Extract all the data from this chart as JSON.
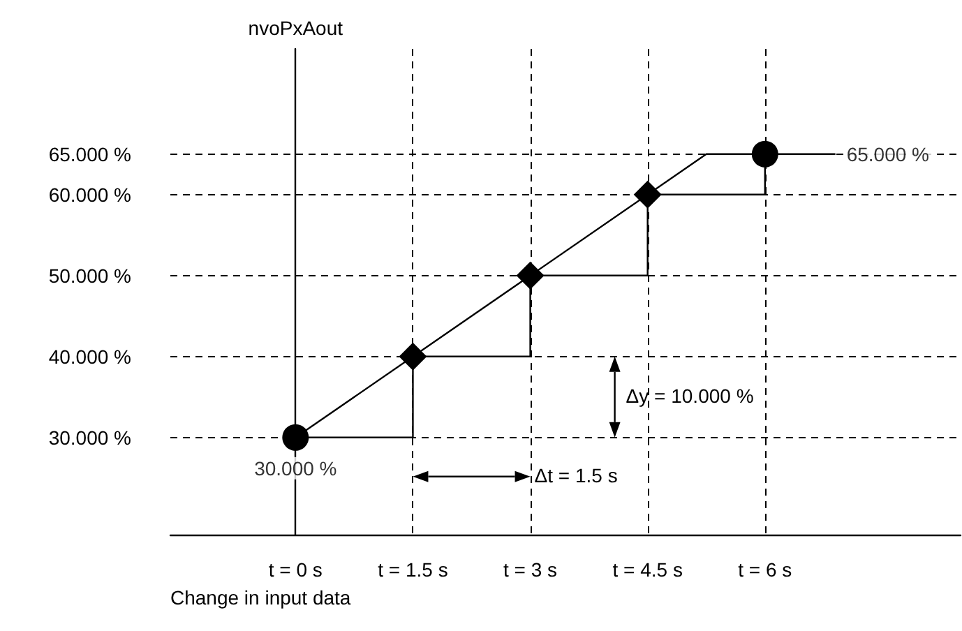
{
  "chart_data": {
    "type": "line",
    "ylabel": "nvoPxAout",
    "xlabel": "Change in input data",
    "xlim": [
      -1.6,
      8.5
    ],
    "ylim": [
      18,
      78
    ],
    "xticks": [
      {
        "value": 0,
        "label": "t = 0 s"
      },
      {
        "value": 1.5,
        "label": "t = 1.5 s"
      },
      {
        "value": 3,
        "label": "t = 3 s"
      },
      {
        "value": 4.5,
        "label": "t = 4.5 s"
      },
      {
        "value": 6,
        "label": "t = 6 s"
      }
    ],
    "yticks": [
      {
        "value": 30,
        "label": "30.000 %"
      },
      {
        "value": 40,
        "label": "40.000 %"
      },
      {
        "value": 50,
        "label": "50.000 %"
      },
      {
        "value": 60,
        "label": "60.000 %"
      },
      {
        "value": 65,
        "label": "65.000 %"
      }
    ],
    "grid": true,
    "series": [
      {
        "color": "#000000",
        "marker": "none",
        "x": [
          0,
          5.25,
          6
        ],
        "values": [
          30,
          65,
          65
        ]
      },
      {
        "type": "step",
        "color": "#000000",
        "marker": "none",
        "x": [
          0,
          1.5,
          3,
          4.5,
          6,
          6.9
        ],
        "values": [
          30,
          40,
          50,
          60,
          65,
          65
        ]
      },
      {
        "type": "scatter",
        "color": "#000000",
        "marker": "diamond",
        "x": [
          1.5,
          3,
          4.5
        ],
        "values": [
          40,
          50,
          60
        ]
      },
      {
        "type": "scatter",
        "color": "#000000",
        "marker": "circle",
        "x": [
          0,
          6
        ],
        "values": [
          30,
          65
        ]
      }
    ],
    "annotations": [
      {
        "text": "30.000 %",
        "x": 0,
        "y": 30
      },
      {
        "text": "65.000 %",
        "x": 6.9,
        "y": 65
      },
      "Δy = 10.000 %",
      "Δt = 1.5 s"
    ]
  }
}
